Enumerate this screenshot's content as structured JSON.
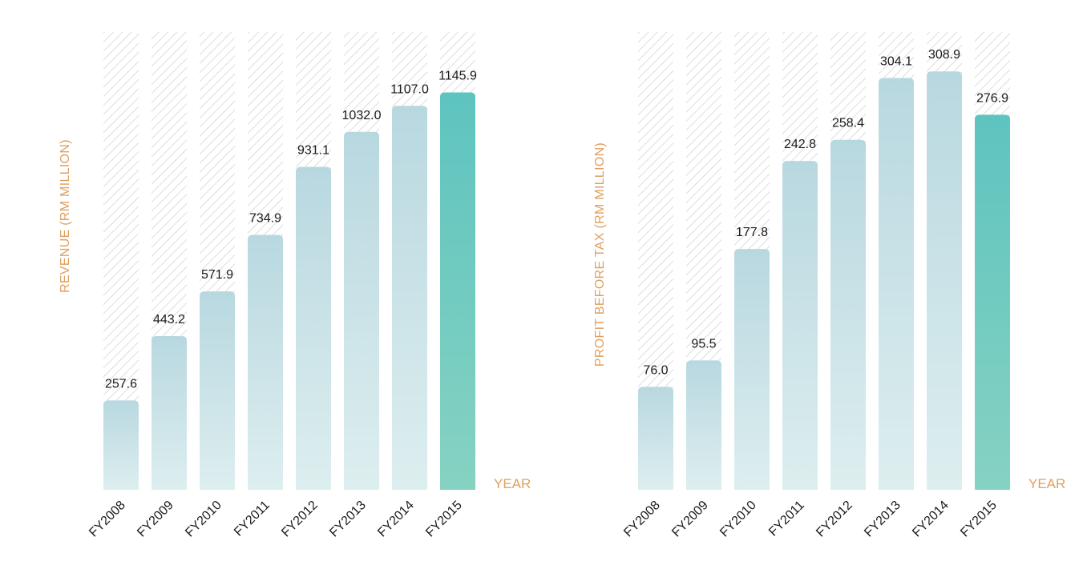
{
  "chart_data": [
    {
      "type": "bar",
      "title": "",
      "xlabel": "YEAR",
      "ylabel": "REVENUE (RM MILLION)",
      "categories": [
        "FY2008",
        "FY2009",
        "FY2010",
        "FY2011",
        "FY2012",
        "FY2013",
        "FY2014",
        "FY2015"
      ],
      "values": [
        257.6,
        443.2,
        571.9,
        734.9,
        931.1,
        1032.0,
        1107.0,
        1145.9
      ],
      "value_labels": [
        "257.6",
        "443.2",
        "571.9",
        "734.9",
        "931.1",
        "1032.0",
        "1107.0",
        "1145.9"
      ],
      "ylim": [
        0,
        1320
      ],
      "grid": false,
      "highlight_index": 7
    },
    {
      "type": "bar",
      "title": "",
      "xlabel": "YEAR",
      "ylabel": "PROFIT BEFORE TAX (RM MILLION)",
      "categories": [
        "FY2008",
        "FY2009",
        "FY2010",
        "FY2011",
        "FY2012",
        "FY2013",
        "FY2014",
        "FY2015"
      ],
      "values": [
        76.0,
        95.5,
        177.8,
        242.8,
        258.4,
        304.1,
        308.9,
        276.9
      ],
      "value_labels": [
        "76.0",
        "95.5",
        "177.8",
        "242.8",
        "258.4",
        "304.1",
        "308.9",
        "276.9"
      ],
      "ylim": [
        0,
        338
      ],
      "grid": false,
      "highlight_index": 7
    }
  ],
  "colors": {
    "bar": "#b8d8e0",
    "bar_fade": "#ddeeef",
    "highlight": "#5ec4bf",
    "highlight_fade": "#86d2c2",
    "hatch": "#cfcfcf",
    "label_accent": "#e0a060",
    "text": "#1a1a1a"
  }
}
